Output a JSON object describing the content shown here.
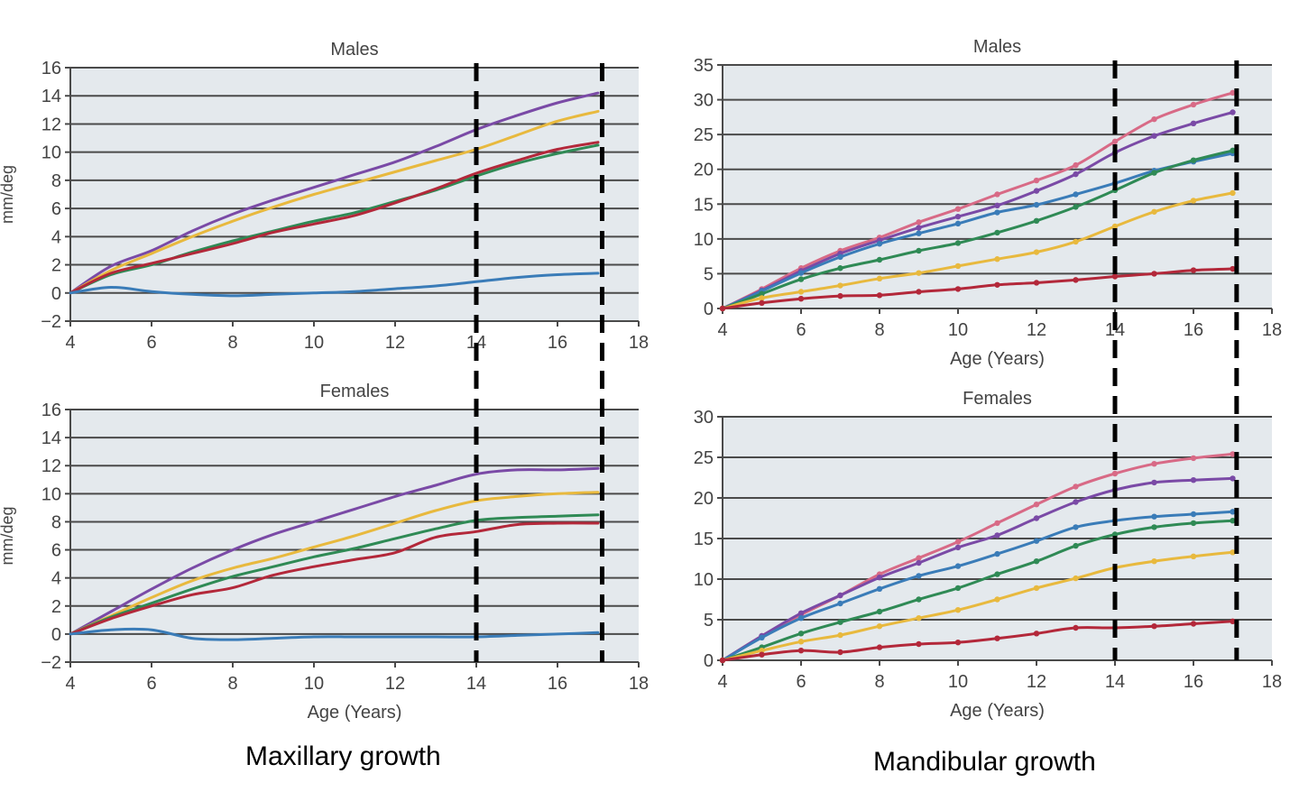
{
  "colors": {
    "plot_bg": "#e4e9ed",
    "grid": "#4a4a4a",
    "purple": "#7a4aa6",
    "yellow": "#e8b93e",
    "green": "#2f8a55",
    "red": "#b3283a",
    "blue": "#3a7cb8",
    "pink": "#d86a86"
  },
  "captions": {
    "maxillary": "Maxillary growth",
    "mandibular": "Mandibular growth"
  },
  "chart_data": [
    {
      "id": "max-males",
      "type": "line",
      "title": "Males",
      "xlabel": "",
      "ylabel": "mm/deg",
      "xlim": [
        4,
        18
      ],
      "ylim": [
        -2,
        16
      ],
      "xticks": [
        4,
        6,
        8,
        10,
        12,
        14,
        16,
        18
      ],
      "yticks": [
        -2,
        0,
        2,
        4,
        6,
        8,
        10,
        12,
        14,
        16
      ],
      "ytick_labels": [
        "−2",
        "0",
        "2",
        "4",
        "6",
        "8",
        "10",
        "12",
        "14",
        "16"
      ],
      "vlines": [
        14,
        17.1
      ],
      "markers": false,
      "series": [
        {
          "color": "purple",
          "x": [
            4,
            5,
            6,
            7,
            8,
            9,
            10,
            11,
            12,
            13,
            14,
            15,
            16,
            17
          ],
          "y": [
            0,
            1.9,
            3.0,
            4.4,
            5.6,
            6.6,
            7.5,
            8.4,
            9.3,
            10.4,
            11.6,
            12.6,
            13.5,
            14.2
          ]
        },
        {
          "color": "yellow",
          "x": [
            4,
            5,
            6,
            7,
            8,
            9,
            10,
            11,
            12,
            13,
            14,
            15,
            16,
            17
          ],
          "y": [
            0,
            1.6,
            2.8,
            4.0,
            5.1,
            6.1,
            7.0,
            7.8,
            8.6,
            9.4,
            10.2,
            11.2,
            12.2,
            12.9
          ]
        },
        {
          "color": "green",
          "x": [
            4,
            5,
            6,
            7,
            8,
            9,
            10,
            11,
            12,
            13,
            14,
            15,
            16,
            17
          ],
          "y": [
            0,
            1.3,
            2.0,
            2.9,
            3.7,
            4.4,
            5.1,
            5.7,
            6.5,
            7.3,
            8.3,
            9.2,
            9.9,
            10.5
          ]
        },
        {
          "color": "red",
          "x": [
            4,
            5,
            6,
            7,
            8,
            9,
            10,
            11,
            12,
            13,
            14,
            15,
            16,
            17
          ],
          "y": [
            0,
            1.4,
            2.1,
            2.8,
            3.5,
            4.3,
            4.9,
            5.5,
            6.4,
            7.4,
            8.5,
            9.4,
            10.2,
            10.7
          ]
        },
        {
          "color": "blue",
          "x": [
            4,
            5,
            6,
            7,
            8,
            9,
            10,
            11,
            12,
            13,
            14,
            15,
            16,
            17
          ],
          "y": [
            0,
            0.4,
            0.1,
            -0.1,
            -0.2,
            -0.1,
            0.0,
            0.1,
            0.3,
            0.5,
            0.8,
            1.1,
            1.3,
            1.4
          ]
        }
      ]
    },
    {
      "id": "max-females",
      "type": "line",
      "title": "Females",
      "xlabel": "Age (Years)",
      "ylabel": "mm/deg",
      "xlim": [
        4,
        18
      ],
      "ylim": [
        -2,
        16
      ],
      "xticks": [
        4,
        6,
        8,
        10,
        12,
        14,
        16,
        18
      ],
      "yticks": [
        -2,
        0,
        2,
        4,
        6,
        8,
        10,
        12,
        14,
        16
      ],
      "ytick_labels": [
        "−2",
        "0",
        "2",
        "4",
        "6",
        "8",
        "10",
        "12",
        "14",
        "16"
      ],
      "vlines": [
        14,
        17.1
      ],
      "markers": false,
      "series": [
        {
          "color": "purple",
          "x": [
            4,
            5,
            6,
            7,
            8,
            9,
            10,
            11,
            12,
            13,
            14,
            15,
            16,
            17
          ],
          "y": [
            0,
            1.6,
            3.2,
            4.7,
            6.0,
            7.1,
            8.0,
            8.9,
            9.8,
            10.6,
            11.4,
            11.7,
            11.7,
            11.8
          ]
        },
        {
          "color": "yellow",
          "x": [
            4,
            5,
            6,
            7,
            8,
            9,
            10,
            11,
            12,
            13,
            14,
            15,
            16,
            17
          ],
          "y": [
            0,
            1.3,
            2.6,
            3.8,
            4.7,
            5.4,
            6.2,
            7.0,
            7.9,
            8.8,
            9.5,
            9.8,
            10.0,
            10.1
          ]
        },
        {
          "color": "green",
          "x": [
            4,
            5,
            6,
            7,
            8,
            9,
            10,
            11,
            12,
            13,
            14,
            15,
            16,
            17
          ],
          "y": [
            0,
            1.2,
            2.2,
            3.2,
            4.1,
            4.8,
            5.5,
            6.1,
            6.8,
            7.5,
            8.1,
            8.3,
            8.4,
            8.5
          ]
        },
        {
          "color": "red",
          "x": [
            4,
            5,
            6,
            7,
            8,
            9,
            10,
            11,
            12,
            13,
            14,
            15,
            16,
            17
          ],
          "y": [
            0,
            1.1,
            2.0,
            2.8,
            3.3,
            4.2,
            4.8,
            5.3,
            5.8,
            6.9,
            7.3,
            7.8,
            7.9,
            7.9
          ]
        },
        {
          "color": "blue",
          "x": [
            4,
            5,
            6,
            7,
            8,
            9,
            10,
            11,
            12,
            13,
            14,
            15,
            16,
            17
          ],
          "y": [
            0,
            0.3,
            0.3,
            -0.3,
            -0.4,
            -0.3,
            -0.2,
            -0.2,
            -0.2,
            -0.2,
            -0.2,
            -0.1,
            0.0,
            0.1
          ]
        }
      ]
    },
    {
      "id": "mand-males",
      "type": "line",
      "title": "Males",
      "xlabel": "Age (Years)",
      "ylabel": "",
      "xlim": [
        4,
        18
      ],
      "ylim": [
        0,
        35
      ],
      "xticks": [
        4,
        6,
        8,
        10,
        12,
        14,
        16,
        18
      ],
      "yticks": [
        0,
        5,
        10,
        15,
        20,
        25,
        30,
        35
      ],
      "ytick_labels": [
        "0",
        "5",
        "10",
        "15",
        "20",
        "25",
        "30",
        "35"
      ],
      "vlines": [
        14,
        17.1
      ],
      "markers": true,
      "series": [
        {
          "color": "pink",
          "x": [
            4,
            5,
            6,
            7,
            8,
            9,
            10,
            11,
            12,
            13,
            14,
            15,
            16,
            17
          ],
          "y": [
            0,
            2.8,
            5.8,
            8.3,
            10.2,
            12.4,
            14.3,
            16.4,
            18.4,
            20.6,
            24.0,
            27.2,
            29.3,
            31.0
          ]
        },
        {
          "color": "purple",
          "x": [
            4,
            5,
            6,
            7,
            8,
            9,
            10,
            11,
            12,
            13,
            14,
            15,
            16,
            17
          ],
          "y": [
            0,
            2.6,
            5.4,
            7.9,
            9.8,
            11.6,
            13.2,
            14.8,
            16.9,
            19.3,
            22.4,
            24.8,
            26.6,
            28.2
          ]
        },
        {
          "color": "blue",
          "x": [
            4,
            5,
            6,
            7,
            8,
            9,
            10,
            11,
            12,
            13,
            14,
            15,
            16,
            17
          ],
          "y": [
            0,
            2.5,
            5.1,
            7.4,
            9.3,
            10.8,
            12.2,
            13.8,
            14.9,
            16.4,
            18.0,
            19.8,
            21.1,
            22.3
          ]
        },
        {
          "color": "green",
          "x": [
            4,
            5,
            6,
            7,
            8,
            9,
            10,
            11,
            12,
            13,
            14,
            15,
            16,
            17
          ],
          "y": [
            0,
            2.1,
            4.2,
            5.8,
            7.0,
            8.3,
            9.4,
            10.9,
            12.6,
            14.6,
            17.0,
            19.5,
            21.3,
            22.7
          ]
        },
        {
          "color": "yellow",
          "x": [
            4,
            5,
            6,
            7,
            8,
            9,
            10,
            11,
            12,
            13,
            14,
            15,
            16,
            17
          ],
          "y": [
            0,
            1.5,
            2.4,
            3.3,
            4.3,
            5.1,
            6.1,
            7.1,
            8.1,
            9.6,
            11.8,
            13.9,
            15.5,
            16.6
          ]
        },
        {
          "color": "red",
          "x": [
            4,
            5,
            6,
            7,
            8,
            9,
            10,
            11,
            12,
            13,
            14,
            15,
            16,
            17
          ],
          "y": [
            0,
            0.8,
            1.4,
            1.8,
            1.9,
            2.4,
            2.8,
            3.4,
            3.7,
            4.1,
            4.6,
            5.0,
            5.5,
            5.7
          ]
        }
      ]
    },
    {
      "id": "mand-females",
      "type": "line",
      "title": "Females",
      "xlabel": "Age (Years)",
      "ylabel": "",
      "xlim": [
        4,
        18
      ],
      "ylim": [
        0,
        30
      ],
      "xticks": [
        4,
        6,
        8,
        10,
        12,
        14,
        16,
        18
      ],
      "yticks": [
        0,
        5,
        10,
        15,
        20,
        25,
        30
      ],
      "ytick_labels": [
        "0",
        "5",
        "10",
        "15",
        "20",
        "25",
        "30"
      ],
      "vlines": [
        14,
        17.1
      ],
      "markers": true,
      "series": [
        {
          "color": "pink",
          "x": [
            4,
            5,
            6,
            7,
            8,
            9,
            10,
            11,
            12,
            13,
            14,
            15,
            16,
            17
          ],
          "y": [
            0,
            3.0,
            5.6,
            8.0,
            10.6,
            12.6,
            14.6,
            16.9,
            19.2,
            21.4,
            23.0,
            24.2,
            24.9,
            25.4
          ]
        },
        {
          "color": "purple",
          "x": [
            4,
            5,
            6,
            7,
            8,
            9,
            10,
            11,
            12,
            13,
            14,
            15,
            16,
            17
          ],
          "y": [
            0,
            3.0,
            5.8,
            8.0,
            10.2,
            12.0,
            13.9,
            15.4,
            17.5,
            19.5,
            21.0,
            21.9,
            22.2,
            22.4
          ]
        },
        {
          "color": "blue",
          "x": [
            4,
            5,
            6,
            7,
            8,
            9,
            10,
            11,
            12,
            13,
            14,
            15,
            16,
            17
          ],
          "y": [
            0,
            2.8,
            5.2,
            7.0,
            8.8,
            10.4,
            11.6,
            13.1,
            14.7,
            16.4,
            17.2,
            17.7,
            18.0,
            18.3
          ]
        },
        {
          "color": "green",
          "x": [
            4,
            5,
            6,
            7,
            8,
            9,
            10,
            11,
            12,
            13,
            14,
            15,
            16,
            17
          ],
          "y": [
            0,
            1.6,
            3.3,
            4.7,
            6.0,
            7.5,
            8.9,
            10.6,
            12.2,
            14.1,
            15.5,
            16.4,
            16.9,
            17.2
          ]
        },
        {
          "color": "yellow",
          "x": [
            4,
            5,
            6,
            7,
            8,
            9,
            10,
            11,
            12,
            13,
            14,
            15,
            16,
            17
          ],
          "y": [
            0,
            1.2,
            2.3,
            3.1,
            4.2,
            5.2,
            6.2,
            7.5,
            8.9,
            10.1,
            11.4,
            12.2,
            12.8,
            13.3
          ]
        },
        {
          "color": "red",
          "x": [
            4,
            5,
            6,
            7,
            8,
            9,
            10,
            11,
            12,
            13,
            14,
            15,
            16,
            17
          ],
          "y": [
            0,
            0.7,
            1.2,
            1.0,
            1.6,
            2.0,
            2.2,
            2.7,
            3.3,
            4.0,
            4.0,
            4.2,
            4.5,
            4.8
          ]
        }
      ]
    }
  ]
}
